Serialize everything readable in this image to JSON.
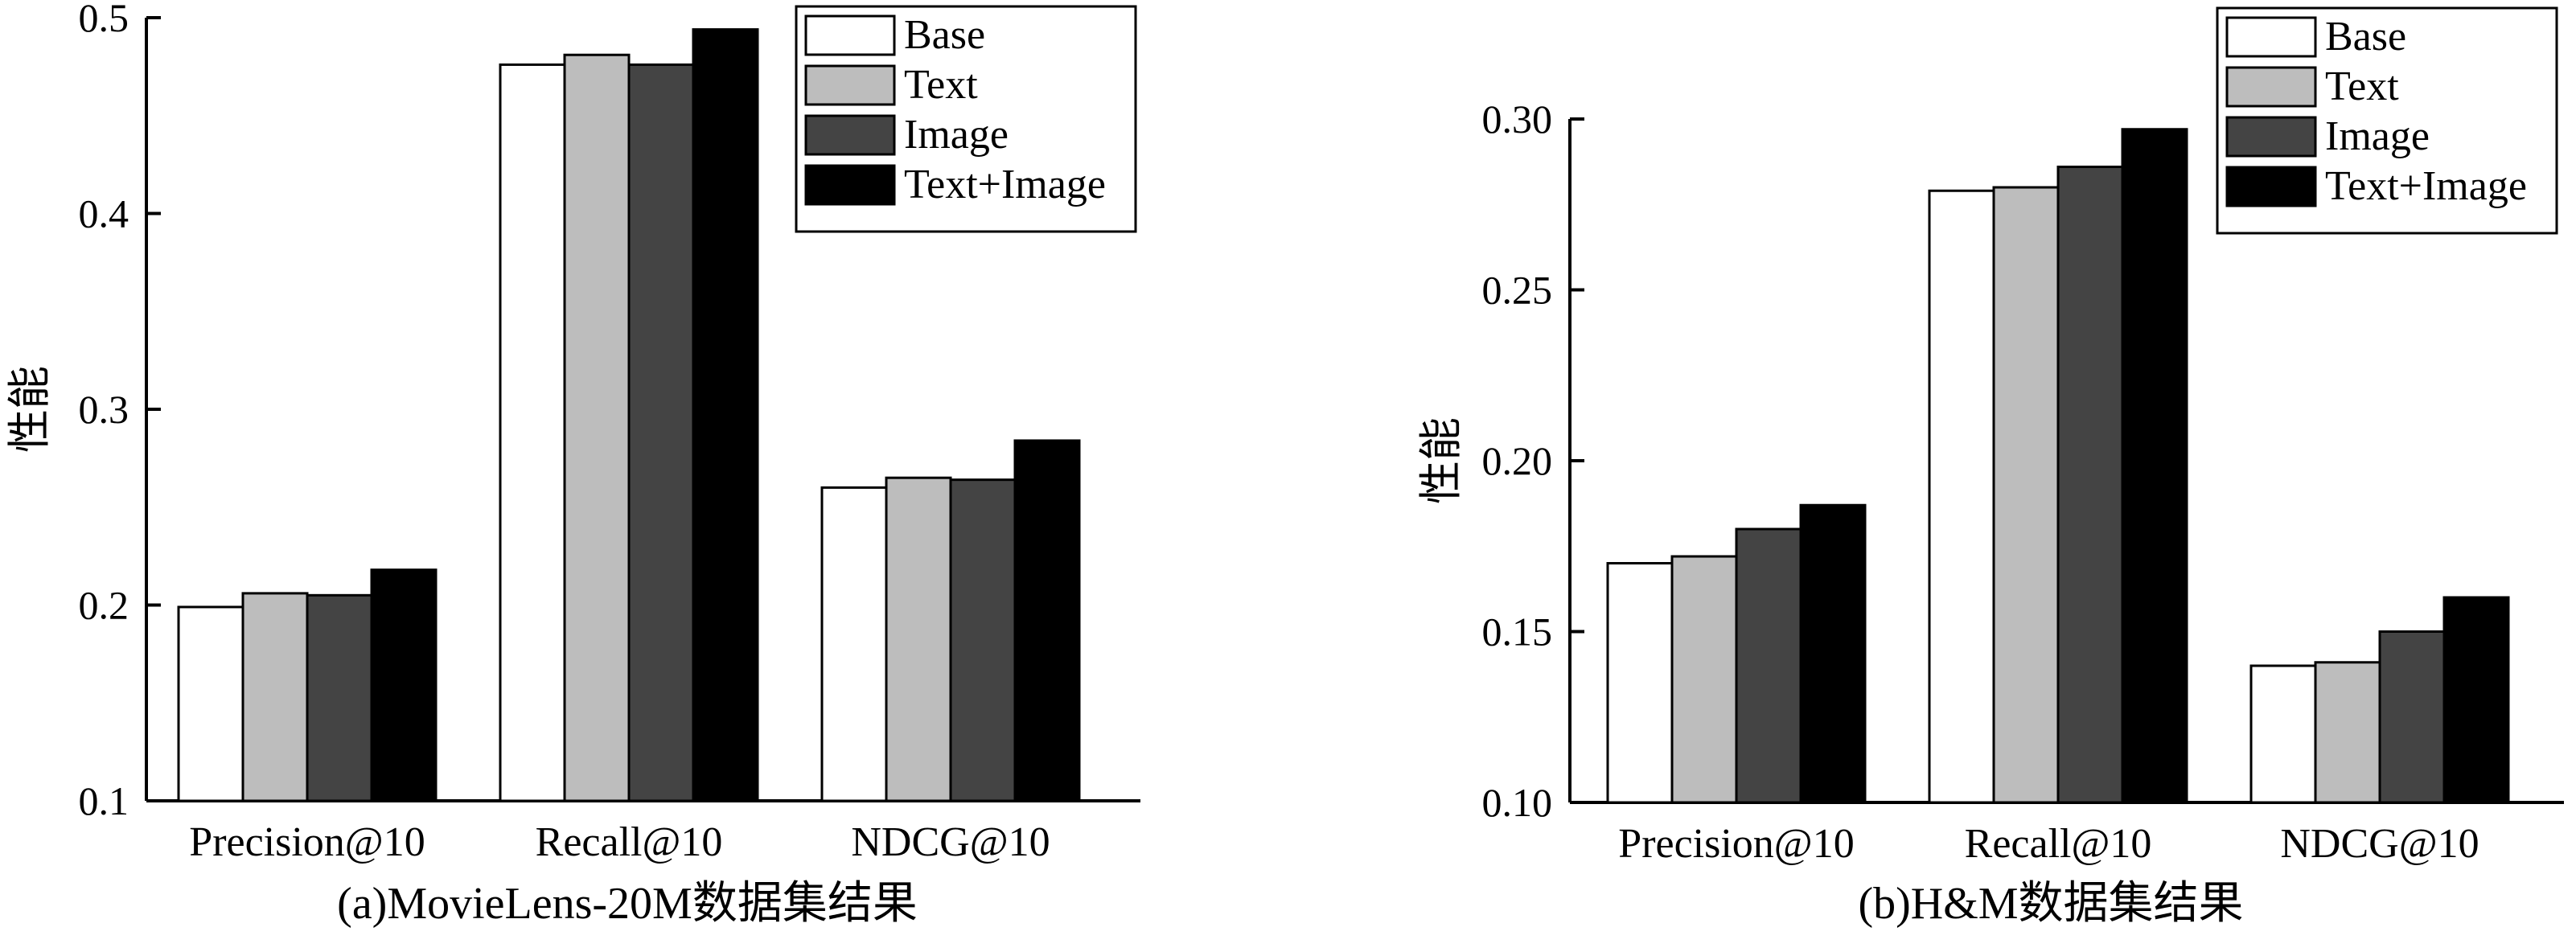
{
  "chart_data": [
    {
      "type": "bar",
      "caption": "(a)MovieLens-20M数据集结果",
      "ylabel": "性能",
      "xlabel": "",
      "categories": [
        "Precision@10",
        "Recall@10",
        "NDCG@10"
      ],
      "series": [
        {
          "name": "Base",
          "values": [
            0.199,
            0.476,
            0.26
          ]
        },
        {
          "name": "Text",
          "values": [
            0.206,
            0.481,
            0.265
          ]
        },
        {
          "name": "Image",
          "values": [
            0.205,
            0.476,
            0.264
          ]
        },
        {
          "name": "Text+Image",
          "values": [
            0.218,
            0.494,
            0.284
          ]
        }
      ],
      "ylim": [
        0.1,
        0.5
      ],
      "yticks": [
        "0.1",
        "0.2",
        "0.3",
        "0.4",
        "0.5"
      ],
      "legend_position": "top-right",
      "grid": false
    },
    {
      "type": "bar",
      "caption": "(b)H&M数据集结果",
      "ylabel": "性能",
      "xlabel": "",
      "categories": [
        "Precision@10",
        "Recall@10",
        "NDCG@10"
      ],
      "series": [
        {
          "name": "Base",
          "values": [
            0.17,
            0.279,
            0.14
          ]
        },
        {
          "name": "Text",
          "values": [
            0.172,
            0.28,
            0.141
          ]
        },
        {
          "name": "Image",
          "values": [
            0.18,
            0.286,
            0.15
          ]
        },
        {
          "name": "Text+Image",
          "values": [
            0.187,
            0.297,
            0.16
          ]
        }
      ],
      "ylim": [
        0.1,
        0.3
      ],
      "yticks": [
        "0.10",
        "0.15",
        "0.20",
        "0.25",
        "0.30"
      ],
      "legend_position": "top-right",
      "grid": false
    }
  ],
  "colors": {
    "Base": "#ffffff",
    "Text": "#bdbdbd",
    "Image": "#444444",
    "Text+Image": "#000000"
  }
}
